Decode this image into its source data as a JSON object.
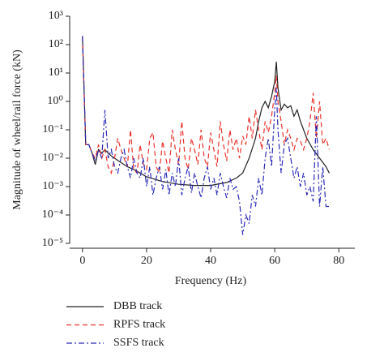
{
  "chart_data": {
    "type": "line",
    "y_label": "Magnitude of wheel/rail force (kN)",
    "x_label": "Frequency (Hz)",
    "ylog": true,
    "xlim": [
      -4,
      85
    ],
    "xticks": [
      0,
      20,
      40,
      60,
      80
    ],
    "ylim": [
      1e-05,
      1000
    ],
    "yticks": [
      {
        "value": 1000,
        "label": "10³"
      },
      {
        "value": 100,
        "label": "10²"
      },
      {
        "value": 10,
        "label": "10¹"
      },
      {
        "value": 1,
        "label": "10⁰"
      },
      {
        "value": 0.1,
        "label": "10⁻¹"
      },
      {
        "value": 0.01,
        "label": "10⁻²"
      },
      {
        "value": 0.001,
        "label": "10⁻³"
      },
      {
        "value": 0.0001,
        "label": "10⁻⁴"
      },
      {
        "value": 1e-05,
        "label": "10⁻⁵"
      }
    ],
    "legend": "below",
    "series": [
      {
        "name": "DBB track",
        "color": "#222222",
        "linestyle": "solid",
        "x": [
          0,
          1,
          2,
          3,
          4,
          5,
          6,
          7,
          8,
          9,
          10,
          12,
          14,
          16,
          18,
          20,
          25,
          30,
          35,
          40,
          45,
          48,
          50,
          52,
          54,
          55,
          56,
          57,
          58,
          59,
          60,
          60.5,
          61,
          62,
          63,
          64,
          65,
          66,
          67,
          68,
          70,
          72,
          74,
          76,
          77
        ],
        "values": [
          200,
          0.03,
          0.03,
          0.015,
          0.006,
          0.02,
          0.015,
          0.02,
          0.015,
          0.012,
          0.01,
          0.007,
          0.005,
          0.004,
          0.003,
          0.0022,
          0.0015,
          0.0012,
          0.0011,
          0.0011,
          0.0014,
          0.002,
          0.003,
          0.01,
          0.05,
          0.2,
          0.6,
          1,
          0.6,
          1.5,
          5,
          25,
          3,
          0.5,
          0.8,
          0.6,
          0.7,
          0.3,
          0.5,
          0.2,
          0.05,
          0.02,
          0.01,
          0.005,
          0.003
        ]
      },
      {
        "name": "RPFS track",
        "color": "#e8312a",
        "linestyle": "dashed",
        "x": [
          0,
          1,
          2,
          3,
          4,
          5,
          6,
          7,
          8,
          9,
          10,
          11,
          12,
          13,
          14,
          15,
          16,
          17,
          18,
          19,
          20,
          21,
          22,
          23,
          24,
          25,
          26,
          27,
          28,
          29,
          30,
          31,
          32,
          33,
          34,
          35,
          36,
          37,
          38,
          39,
          40,
          41,
          42,
          43,
          44,
          45,
          46,
          47,
          48,
          49,
          50,
          51,
          52,
          53,
          54,
          55,
          56,
          57,
          58,
          59,
          60,
          60.5,
          61,
          62,
          63,
          64,
          65,
          66,
          67,
          68,
          69,
          70,
          71,
          72,
          73,
          74,
          75,
          76,
          77
        ],
        "values": [
          200,
          0.03,
          0.03,
          0.015,
          0.01,
          0.03,
          0.01,
          0.02,
          0.005,
          0.003,
          0.01,
          0.05,
          0.02,
          0.01,
          0.005,
          0.1,
          0.004,
          0.003,
          0.03,
          0.006,
          0.004,
          0.05,
          0.08,
          0.005,
          0.003,
          0.04,
          0.01,
          0.003,
          0.1,
          0.02,
          0.006,
          0.2,
          0.01,
          0.004,
          0.05,
          0.02,
          0.006,
          0.1,
          0.01,
          0.005,
          0.08,
          0.02,
          0.005,
          0.2,
          0.03,
          0.008,
          0.1,
          0.02,
          0.05,
          0.01,
          0.06,
          0.03,
          0.3,
          0.05,
          0.5,
          0.1,
          0.02,
          0.2,
          0.08,
          0.3,
          2,
          8,
          1,
          0.2,
          0.03,
          0.1,
          0.05,
          0.02,
          0.05,
          0.04,
          0.02,
          0.05,
          0.2,
          2,
          0.05,
          1,
          0.03,
          0.05,
          0.02
        ]
      },
      {
        "name": "SSFS track",
        "color": "#2a2ab8",
        "linestyle": "dashdot",
        "x": [
          0,
          1,
          2,
          3,
          4,
          5,
          6,
          7,
          8,
          9,
          10,
          11,
          12,
          13,
          14,
          15,
          16,
          17,
          18,
          19,
          20,
          21,
          22,
          23,
          24,
          25,
          26,
          27,
          28,
          29,
          30,
          31,
          32,
          33,
          34,
          35,
          36,
          37,
          38,
          39,
          40,
          41,
          42,
          43,
          44,
          45,
          46,
          47,
          48,
          49,
          50,
          51,
          52,
          53,
          54,
          55,
          56,
          57,
          58,
          59,
          60,
          60.5,
          61,
          62,
          63,
          64,
          65,
          66,
          67,
          68,
          69,
          70,
          71,
          72,
          73,
          74,
          75,
          76,
          77
        ],
        "values": [
          200,
          0.03,
          0.03,
          0.015,
          0.008,
          0.02,
          0.01,
          0.5,
          0.01,
          0.02,
          0.005,
          0.003,
          0.01,
          0.02,
          0.005,
          0.002,
          0.01,
          0.003,
          0.002,
          0.01,
          0.001,
          0.005,
          0.0005,
          0.002,
          0.005,
          0.0008,
          0.004,
          0.0005,
          0.003,
          0.001,
          0.01,
          0.0005,
          0.002,
          0.005,
          0.0006,
          0.003,
          0.001,
          0.0004,
          0.002,
          0.005,
          0.0008,
          0.002,
          0.0005,
          0.003,
          0.001,
          0.0004,
          0.002,
          0.0008,
          0.001,
          0.0003,
          2e-05,
          0.0001,
          5e-05,
          0.0005,
          0.0002,
          0.002,
          0.0005,
          0.01,
          0.05,
          0.005,
          0.5,
          3,
          0.1,
          0.003,
          0.03,
          0.05,
          0.01,
          0.002,
          0.005,
          0.001,
          0.003,
          0.0005,
          0.001,
          0.0003,
          0.3,
          0.0002,
          0.005,
          0.0002,
          0.0002
        ]
      }
    ]
  }
}
